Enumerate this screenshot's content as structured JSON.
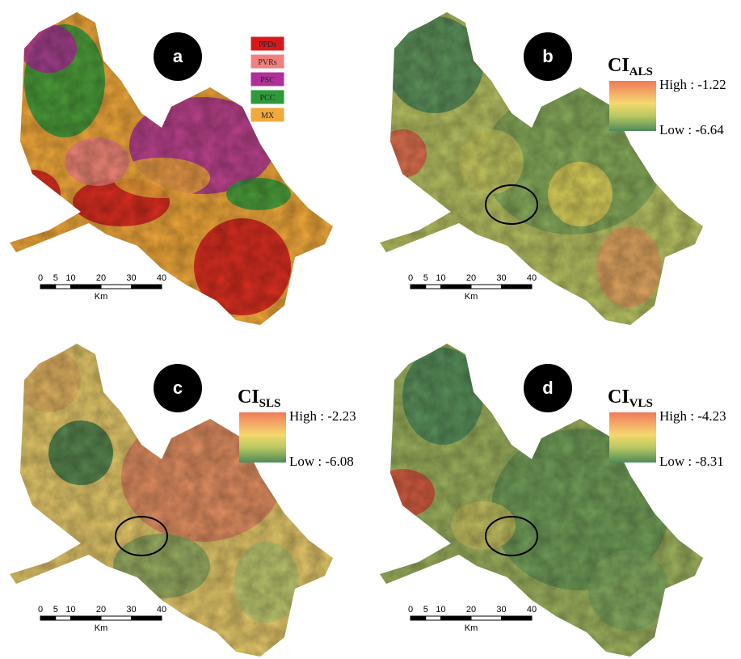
{
  "panels": [
    {
      "label": "a",
      "legend": [
        {
          "name": "PPDs",
          "color": "#d7191c"
        },
        {
          "name": "PVRs",
          "color": "#f08080"
        },
        {
          "name": "PSC",
          "color": "#b0309a"
        },
        {
          "name": "PCC",
          "color": "#2e9a3a"
        },
        {
          "name": "MX",
          "color": "#f2a93b"
        }
      ],
      "scale": {
        "ticks": [
          0,
          5,
          10,
          20,
          30,
          40
        ],
        "unit": "Km"
      }
    },
    {
      "label": "b",
      "title": "CI",
      "subscript": "ALS",
      "high": "High : -1.22",
      "low": "Low : -6.64",
      "scale": {
        "ticks": [
          0,
          5,
          10,
          20,
          30,
          40
        ],
        "unit": "Km"
      }
    },
    {
      "label": "c",
      "title": "CI",
      "subscript": "SLS",
      "high": "High : -2.23",
      "low": "Low : -6.08",
      "scale": {
        "ticks": [
          0,
          5,
          10,
          20,
          30,
          40
        ],
        "unit": "Km"
      }
    },
    {
      "label": "d",
      "title": "CI",
      "subscript": "VLS",
      "high": "High : -4.23",
      "low": "Low : -8.31",
      "scale": {
        "ticks": [
          0,
          5,
          10,
          20,
          30,
          40
        ],
        "unit": "Km"
      }
    }
  ]
}
